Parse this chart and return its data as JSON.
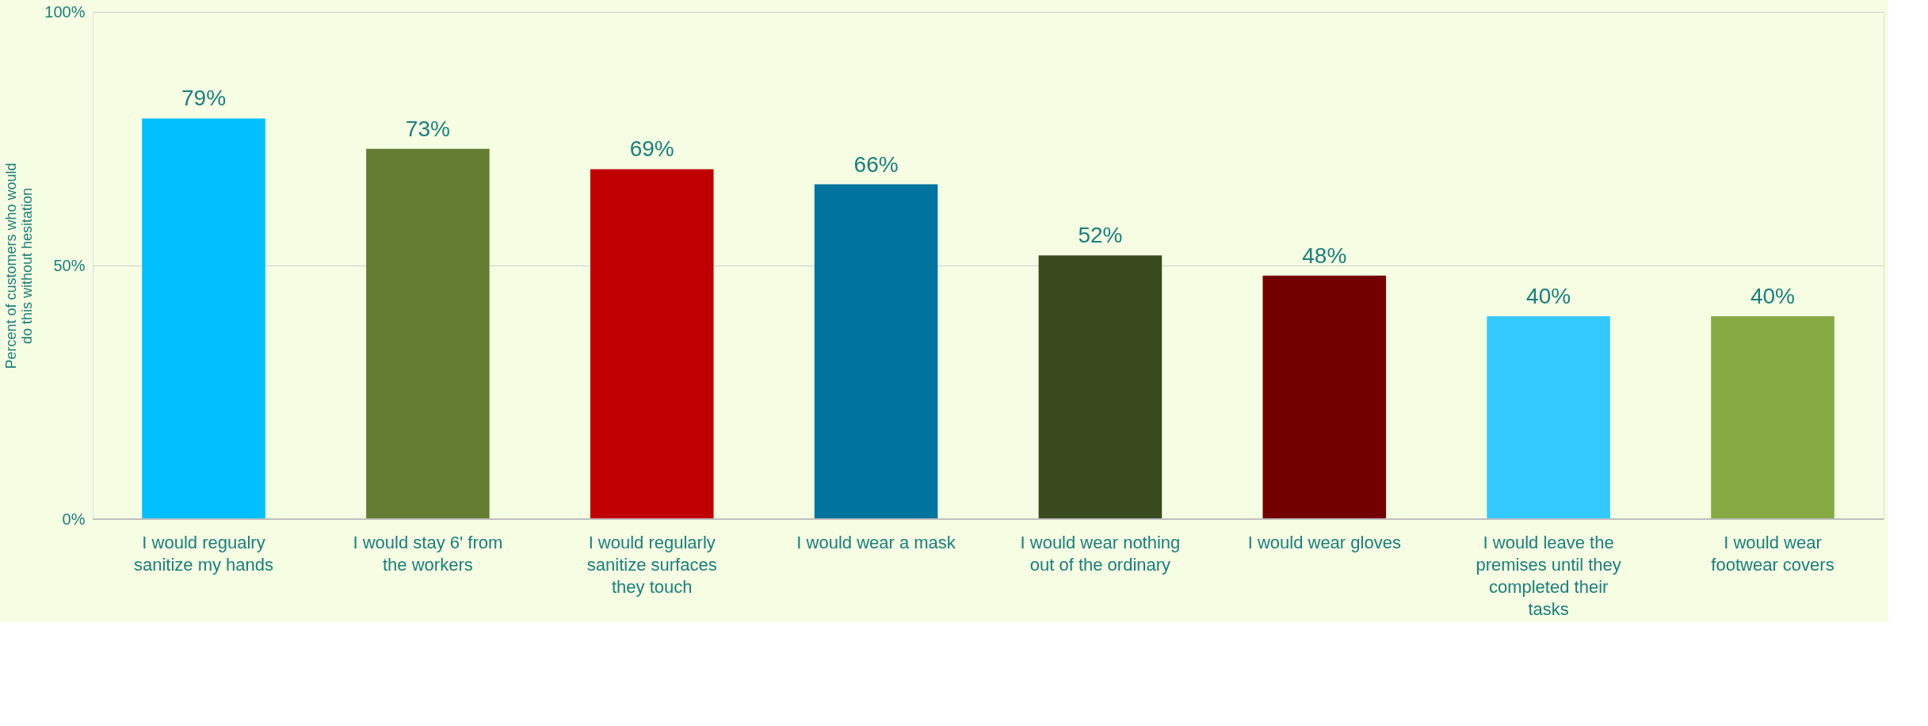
{
  "chart_data": {
    "type": "bar",
    "ylabel": "Percent of customers who would do this without hesitation",
    "categories": [
      "I would regualry sanitize my hands",
      "I would stay 6' from the workers",
      "I would regularly sanitize surfaces they touch",
      "I would wear a mask",
      "I would wear nothing out of the ordinary",
      "I would wear gloves",
      "I would leave the premises until they completed their tasks",
      "I would wear footwear covers"
    ],
    "values": [
      79,
      73,
      69,
      66,
      52,
      48,
      40,
      40
    ],
    "value_labels": [
      "79%",
      "73%",
      "69%",
      "66%",
      "52%",
      "48%",
      "40%",
      "40%"
    ],
    "colors": [
      "#00bfff",
      "#657d33",
      "#c00000",
      "#00739f",
      "#3a4a1f",
      "#720000",
      "#33c9ff",
      "#88aa44"
    ],
    "ylim": [
      0,
      100
    ],
    "yticks": [
      {
        "value": 0,
        "label": "0%"
      },
      {
        "value": 50,
        "label": "50%"
      },
      {
        "value": 100,
        "label": "100%"
      }
    ],
    "grid": "y"
  }
}
